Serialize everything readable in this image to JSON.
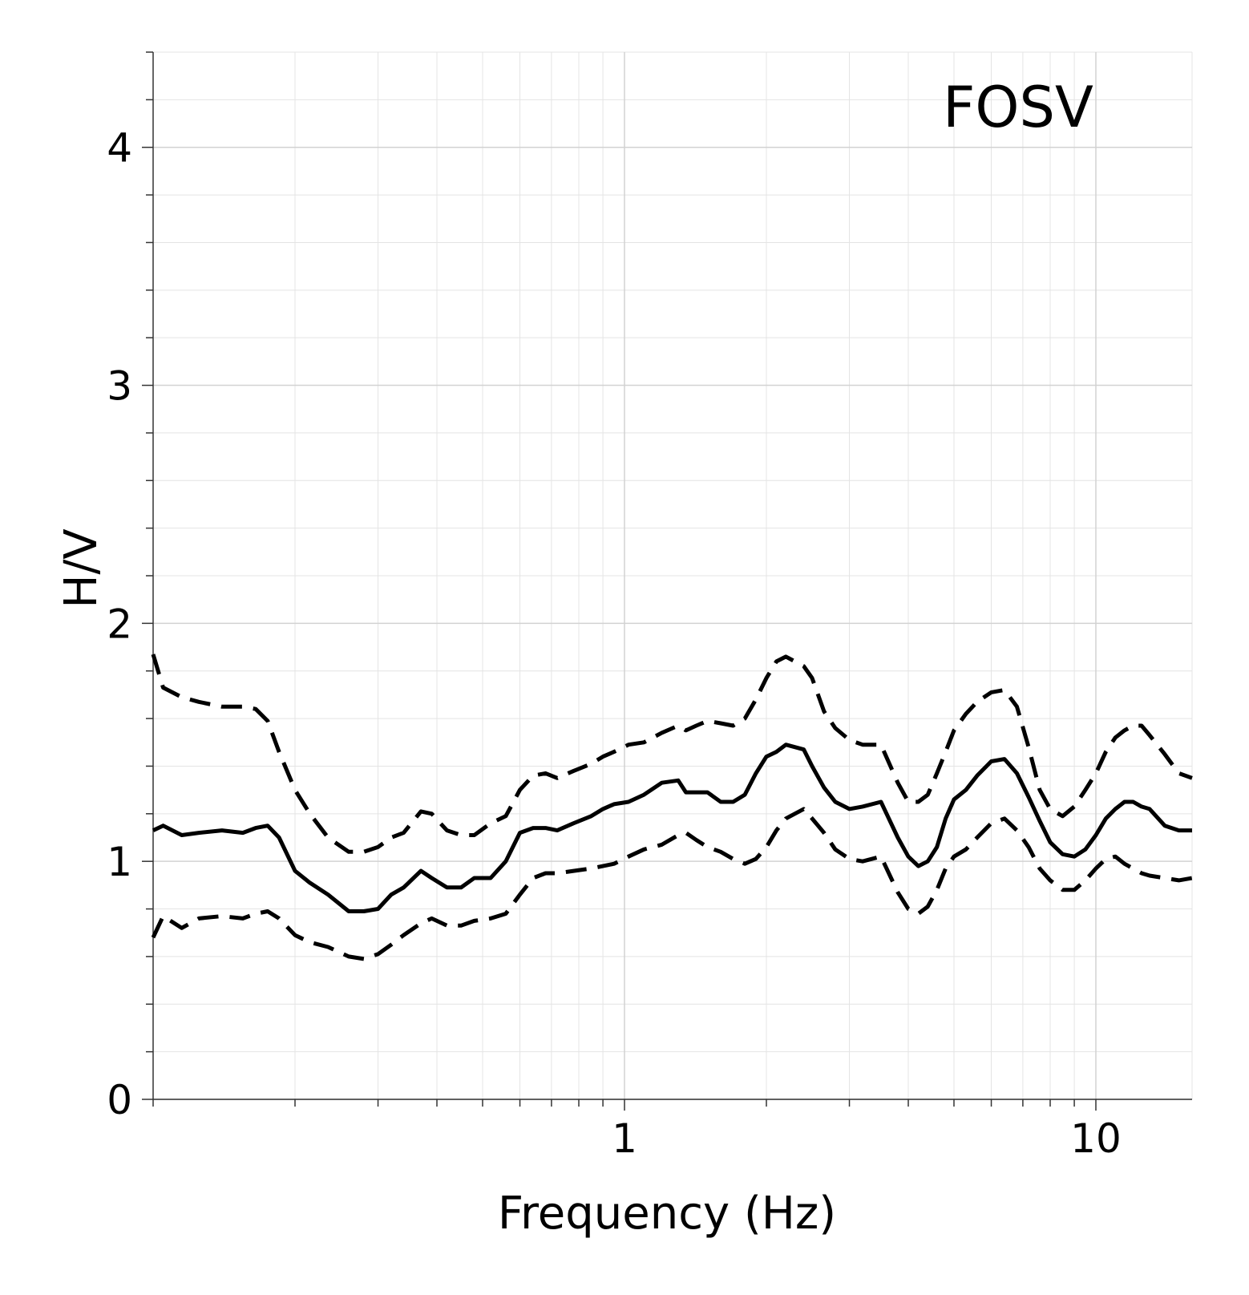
{
  "chart_data": {
    "type": "line",
    "station_label": "FOSV",
    "xlabel": "Frequency (Hz)",
    "ylabel": "H/V",
    "x_scale": "log",
    "xlim": [
      0.1,
      16
    ],
    "ylim": [
      0,
      4.4
    ],
    "x_ticks": [
      1,
      10
    ],
    "x_tick_labels": [
      "1",
      "10"
    ],
    "y_ticks": [
      0,
      1,
      2,
      3,
      4
    ],
    "y_tick_labels": [
      "0",
      "1",
      "2",
      "3",
      "4"
    ],
    "grid": true,
    "legend": null,
    "series": [
      {
        "style": "solid",
        "x": [
          0.1,
          0.105,
          0.115,
          0.125,
          0.14,
          0.155,
          0.165,
          0.175,
          0.185,
          0.2,
          0.215,
          0.235,
          0.26,
          0.28,
          0.3,
          0.32,
          0.34,
          0.37,
          0.39,
          0.42,
          0.45,
          0.48,
          0.52,
          0.56,
          0.6,
          0.64,
          0.68,
          0.72,
          0.78,
          0.85,
          0.9,
          0.95,
          1.02,
          1.1,
          1.2,
          1.3,
          1.35,
          1.42,
          1.5,
          1.6,
          1.7,
          1.8,
          1.9,
          2.0,
          2.1,
          2.2,
          2.4,
          2.5,
          2.65,
          2.8,
          3.0,
          3.2,
          3.5,
          3.8,
          4.0,
          4.2,
          4.4,
          4.6,
          4.8,
          5.0,
          5.3,
          5.6,
          6.0,
          6.4,
          6.8,
          7.2,
          7.6,
          8.0,
          8.5,
          9.0,
          9.5,
          10.0,
          10.5,
          11.0,
          11.5,
          12.0,
          12.5,
          13.0,
          14.0,
          15.0,
          16.0
        ],
        "y": [
          1.13,
          1.15,
          1.11,
          1.12,
          1.13,
          1.12,
          1.14,
          1.15,
          1.1,
          0.96,
          0.91,
          0.86,
          0.79,
          0.79,
          0.8,
          0.86,
          0.89,
          0.96,
          0.93,
          0.89,
          0.89,
          0.93,
          0.93,
          1.0,
          1.12,
          1.14,
          1.14,
          1.13,
          1.16,
          1.19,
          1.22,
          1.24,
          1.25,
          1.28,
          1.33,
          1.34,
          1.29,
          1.29,
          1.29,
          1.25,
          1.25,
          1.28,
          1.37,
          1.44,
          1.46,
          1.49,
          1.47,
          1.4,
          1.31,
          1.25,
          1.22,
          1.23,
          1.25,
          1.1,
          1.02,
          0.98,
          1.0,
          1.06,
          1.18,
          1.26,
          1.3,
          1.36,
          1.42,
          1.43,
          1.37,
          1.27,
          1.17,
          1.08,
          1.03,
          1.02,
          1.05,
          1.11,
          1.18,
          1.22,
          1.25,
          1.25,
          1.23,
          1.22,
          1.15,
          1.13,
          1.13
        ]
      },
      {
        "style": "dashed",
        "x": [
          0.1,
          0.105,
          0.115,
          0.125,
          0.14,
          0.155,
          0.165,
          0.175,
          0.185,
          0.2,
          0.215,
          0.235,
          0.26,
          0.28,
          0.3,
          0.32,
          0.34,
          0.37,
          0.39,
          0.42,
          0.45,
          0.48,
          0.52,
          0.56,
          0.6,
          0.64,
          0.68,
          0.72,
          0.78,
          0.85,
          0.9,
          0.95,
          1.02,
          1.1,
          1.2,
          1.3,
          1.35,
          1.42,
          1.5,
          1.6,
          1.7,
          1.8,
          1.9,
          2.0,
          2.1,
          2.2,
          2.4,
          2.5,
          2.65,
          2.8,
          3.0,
          3.2,
          3.5,
          3.8,
          4.0,
          4.2,
          4.4,
          4.6,
          4.8,
          5.0,
          5.3,
          5.6,
          6.0,
          6.4,
          6.8,
          7.2,
          7.6,
          8.0,
          8.5,
          9.0,
          9.5,
          10.0,
          10.5,
          11.0,
          11.5,
          12.0,
          12.5,
          13.0,
          14.0,
          15.0,
          16.0
        ],
        "y": [
          1.87,
          1.73,
          1.69,
          1.67,
          1.65,
          1.65,
          1.64,
          1.59,
          1.46,
          1.3,
          1.2,
          1.1,
          1.04,
          1.04,
          1.06,
          1.1,
          1.12,
          1.21,
          1.2,
          1.13,
          1.11,
          1.11,
          1.16,
          1.19,
          1.3,
          1.36,
          1.37,
          1.35,
          1.38,
          1.41,
          1.44,
          1.46,
          1.49,
          1.5,
          1.54,
          1.57,
          1.55,
          1.57,
          1.59,
          1.58,
          1.57,
          1.6,
          1.68,
          1.77,
          1.84,
          1.86,
          1.82,
          1.77,
          1.63,
          1.56,
          1.51,
          1.49,
          1.49,
          1.33,
          1.25,
          1.25,
          1.28,
          1.37,
          1.46,
          1.55,
          1.62,
          1.67,
          1.71,
          1.72,
          1.65,
          1.48,
          1.3,
          1.22,
          1.19,
          1.23,
          1.3,
          1.37,
          1.46,
          1.52,
          1.55,
          1.57,
          1.57,
          1.53,
          1.45,
          1.37,
          1.35
        ]
      },
      {
        "style": "dashed",
        "x": [
          0.1,
          0.105,
          0.115,
          0.125,
          0.14,
          0.155,
          0.165,
          0.175,
          0.185,
          0.2,
          0.215,
          0.235,
          0.26,
          0.28,
          0.3,
          0.32,
          0.34,
          0.37,
          0.39,
          0.42,
          0.45,
          0.48,
          0.52,
          0.56,
          0.6,
          0.64,
          0.68,
          0.72,
          0.78,
          0.85,
          0.9,
          0.95,
          1.02,
          1.1,
          1.2,
          1.3,
          1.35,
          1.42,
          1.5,
          1.6,
          1.7,
          1.8,
          1.9,
          2.0,
          2.1,
          2.2,
          2.4,
          2.5,
          2.65,
          2.8,
          3.0,
          3.2,
          3.5,
          3.8,
          4.0,
          4.2,
          4.4,
          4.6,
          4.8,
          5.0,
          5.3,
          5.6,
          6.0,
          6.4,
          6.8,
          7.2,
          7.6,
          8.0,
          8.5,
          9.0,
          9.5,
          10.0,
          10.5,
          11.0,
          11.5,
          12.0,
          12.5,
          13.0,
          14.0,
          15.0,
          16.0
        ],
        "y": [
          0.68,
          0.77,
          0.72,
          0.76,
          0.77,
          0.76,
          0.78,
          0.79,
          0.76,
          0.69,
          0.66,
          0.64,
          0.6,
          0.59,
          0.61,
          0.65,
          0.69,
          0.74,
          0.76,
          0.73,
          0.73,
          0.75,
          0.76,
          0.78,
          0.86,
          0.93,
          0.95,
          0.95,
          0.96,
          0.97,
          0.98,
          0.99,
          1.02,
          1.05,
          1.07,
          1.11,
          1.12,
          1.09,
          1.06,
          1.04,
          1.01,
          0.99,
          1.01,
          1.06,
          1.13,
          1.18,
          1.22,
          1.18,
          1.12,
          1.05,
          1.01,
          1.0,
          1.02,
          0.87,
          0.8,
          0.78,
          0.81,
          0.88,
          0.97,
          1.02,
          1.05,
          1.1,
          1.16,
          1.18,
          1.13,
          1.06,
          0.97,
          0.92,
          0.88,
          0.88,
          0.92,
          0.97,
          1.01,
          1.02,
          0.99,
          0.97,
          0.95,
          0.94,
          0.93,
          0.92,
          0.93
        ]
      }
    ]
  }
}
